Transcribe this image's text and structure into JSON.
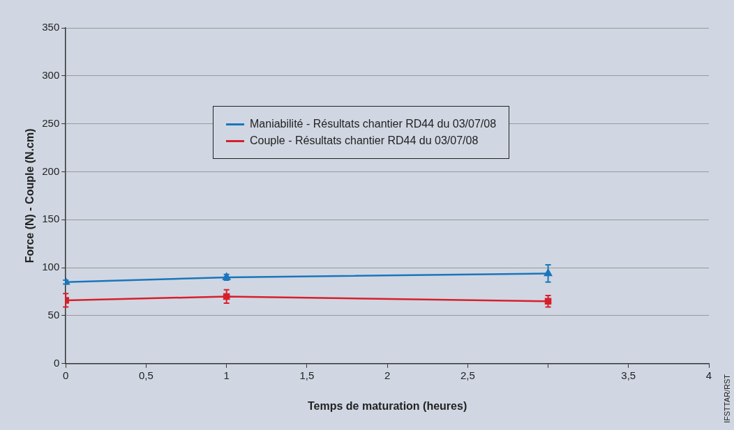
{
  "chart_data": {
    "type": "line",
    "xlabel": "Temps de maturation (heures)",
    "ylabel": "Force (N) - Couple (N.cm)",
    "annotations": [
      "IFSTTAR/RST"
    ],
    "xlim": [
      0,
      4
    ],
    "xticks": [
      0,
      {
        "value": 0.5,
        "label": "0,5"
      },
      1,
      {
        "value": 1.5,
        "label": "1,5"
      },
      2,
      {
        "value": 2.5,
        "label": "2,5"
      },
      {
        "value": 3,
        "label": null
      },
      {
        "value": 3.5,
        "label": "3,5"
      },
      4
    ],
    "ylim": [
      0,
      350
    ],
    "yticks": [
      0,
      50,
      100,
      150,
      200,
      250,
      300,
      350
    ],
    "grid": "y",
    "legend": "top",
    "series": [
      {
        "name": "Maniabilité - Résultats chantier RD44 du 03/07/08",
        "color": "#1a75bc",
        "marker": "triangle",
        "x": [
          0,
          1,
          3
        ],
        "values": [
          85,
          90,
          94
        ],
        "errors": [
          2,
          3,
          9
        ]
      },
      {
        "name": "Couple - Résultats chantier RD44 du 03/07/08",
        "color": "#d7202b",
        "marker": "square",
        "x": [
          0,
          1,
          3
        ],
        "values": [
          66,
          70,
          65
        ],
        "errors": [
          7,
          7,
          6
        ]
      }
    ]
  }
}
